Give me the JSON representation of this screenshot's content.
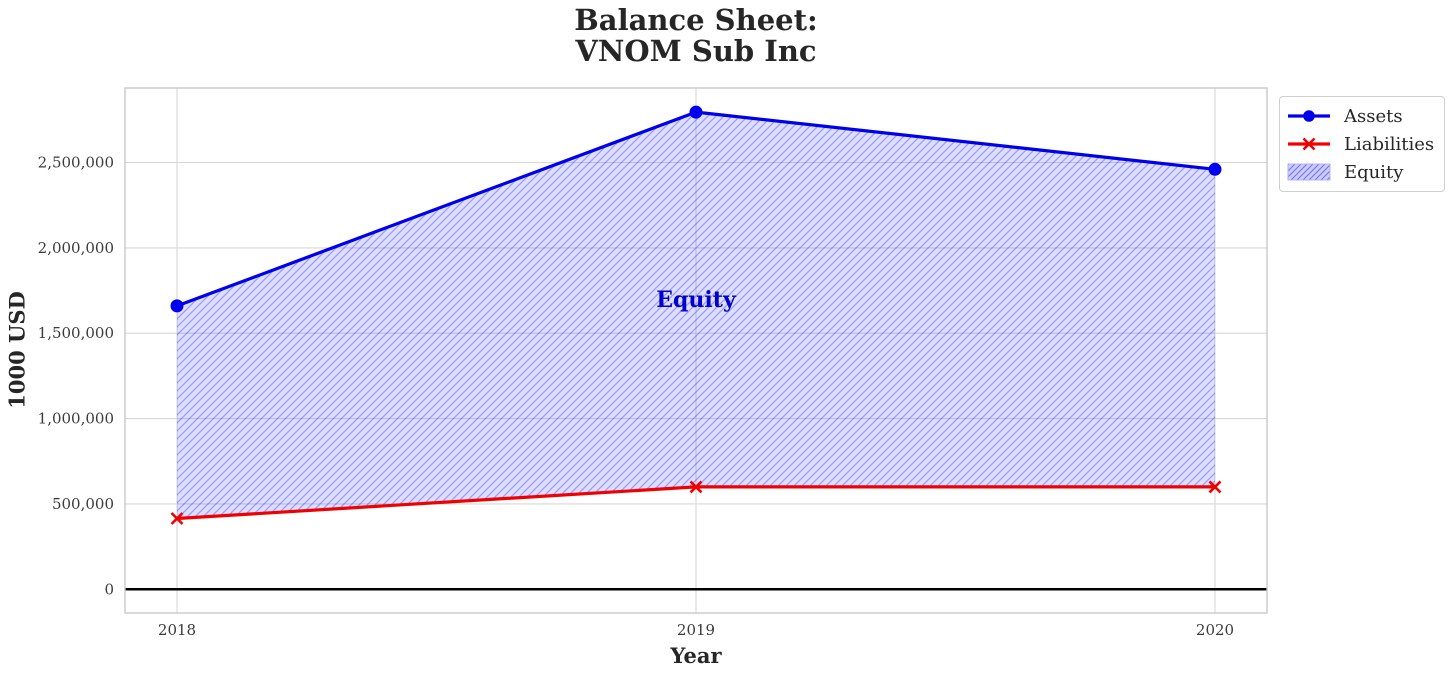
{
  "title": "Balance Sheet:\nVNOM Sub Inc",
  "axes": {
    "x_label": "Year",
    "y_label": "1000 USD",
    "x_ticks": [
      "2018",
      "2019",
      "2020"
    ],
    "y_ticks": [
      "0",
      "500,000",
      "1,000,000",
      "1,500,000",
      "2,000,000",
      "2,500,000"
    ]
  },
  "legend": {
    "items": [
      {
        "label": "Assets",
        "swatch": "blue-line-circle-marker"
      },
      {
        "label": "Liabilities",
        "swatch": "red-line-x-marker"
      },
      {
        "label": "Equity",
        "swatch": "blue-hatched-patch"
      }
    ]
  },
  "annotation": {
    "text": "Equity",
    "color": "#0000cd"
  },
  "chart_data": {
    "type": "line",
    "title": "Balance Sheet:\nVNOM Sub Inc",
    "xlabel": "Year",
    "ylabel": "1000 USD",
    "x": [
      2018,
      2019,
      2020
    ],
    "series": [
      {
        "name": "Assets",
        "values": [
          1660000,
          2795000,
          2460000
        ],
        "color": "#0000ee",
        "marker": "circle",
        "line_width": 3.2
      },
      {
        "name": "Liabilities",
        "values": [
          415000,
          600000,
          600000
        ],
        "color": "#f20000",
        "marker": "x",
        "line_width": 3.2
      }
    ],
    "area": {
      "name": "Equity",
      "between": [
        "Liabilities",
        "Assets"
      ],
      "fill": "#0000ff",
      "fill_opacity": 0.13,
      "hatch": "//",
      "hatch_color": "#0000ff",
      "hatch_opacity": 0.3
    },
    "yticks": [
      0,
      500000,
      1000000,
      1500000,
      2000000,
      2500000
    ],
    "ylim": [
      -140000,
      2940000
    ],
    "grid": true,
    "zero_line": true,
    "legend_position": "upper right, outside plot area"
  }
}
